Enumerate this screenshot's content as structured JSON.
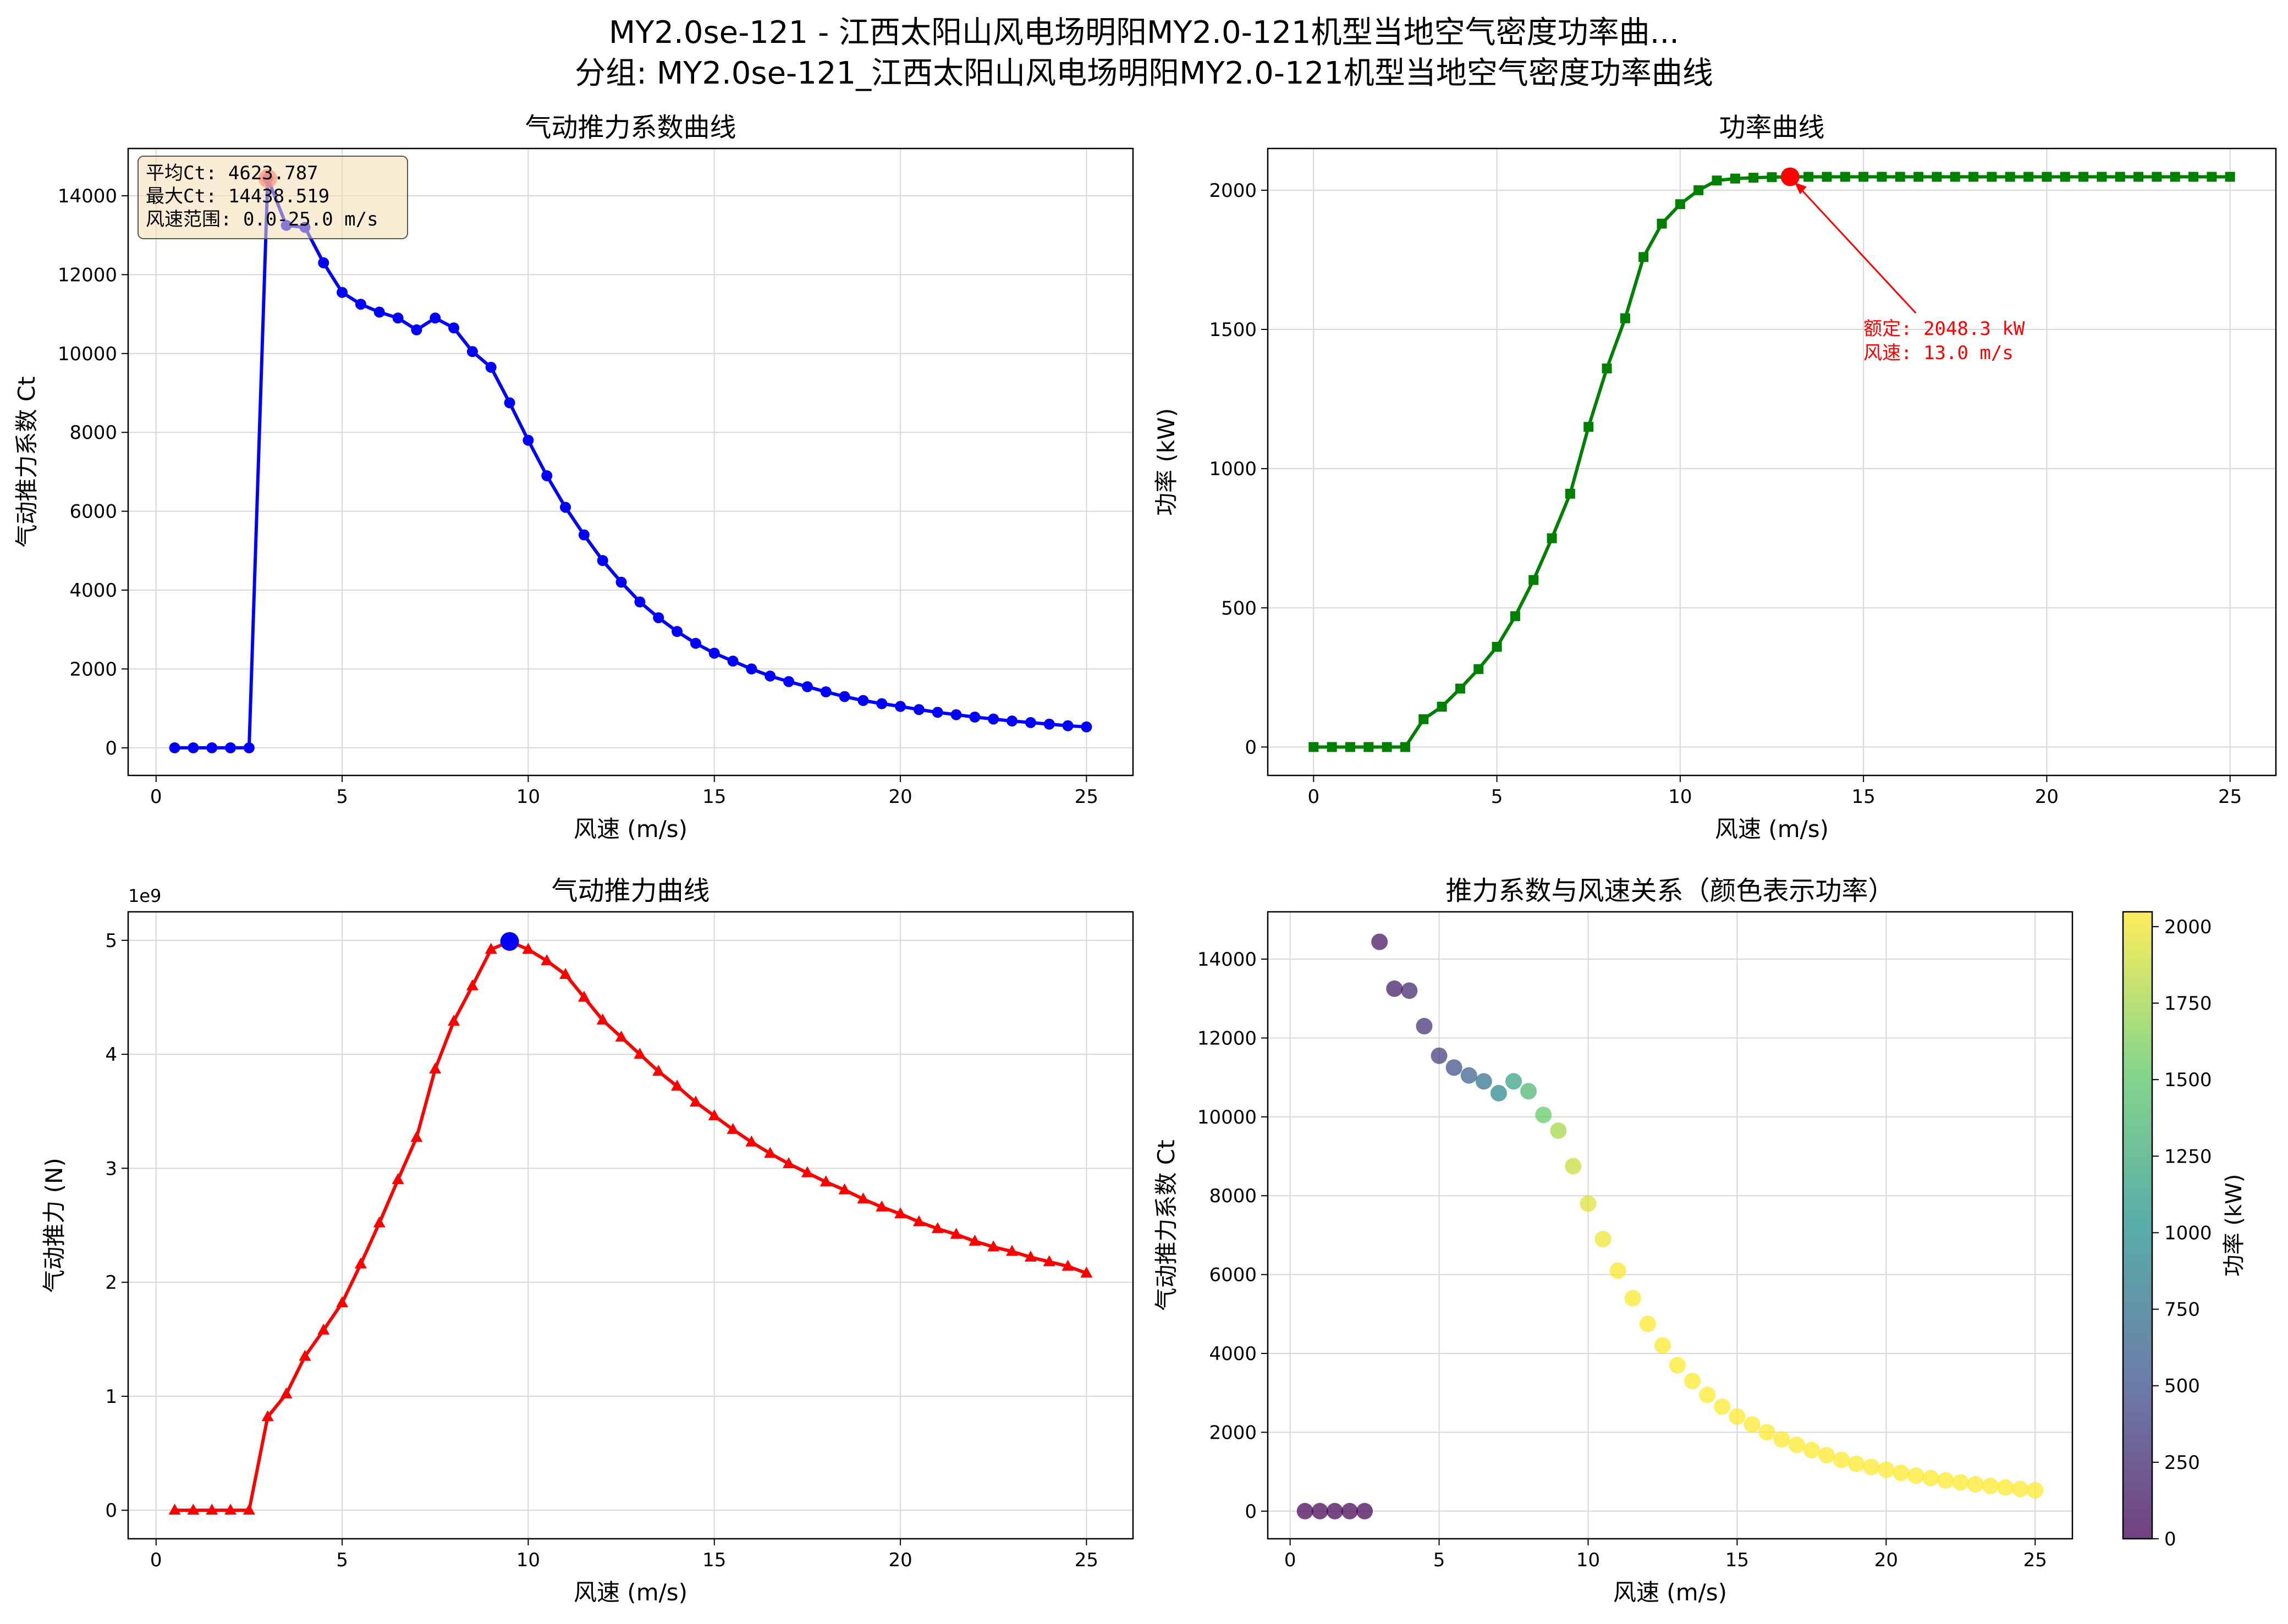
{
  "figure": {
    "title_line1": "MY2.0se-121 - 江西太阳山风电场明阳MY2.0-121机型当地空气密度功率曲...",
    "title_line2": "分组: MY2.0se-121_江西太阳山风电场明阳MY2.0-121机型当地空气密度功率曲线"
  },
  "chart_data": [
    {
      "type": "line",
      "title": "气动推力系数曲线",
      "xlabel": "风速 (m/s)",
      "ylabel": "气动推力系数 Ct",
      "xlim": [
        -0.75,
        26.25
      ],
      "ylim": [
        -700,
        15200
      ],
      "xticks": [
        0,
        5,
        10,
        15,
        20,
        25
      ],
      "yticks": [
        0,
        2000,
        4000,
        6000,
        8000,
        10000,
        12000,
        14000
      ],
      "grid": true,
      "color": "#0000ff",
      "marker": "circle",
      "series": [
        {
          "x": [
            0.5,
            1,
            1.5,
            2,
            2.5,
            3,
            3.5,
            4,
            4.5,
            5,
            5.5,
            6,
            6.5,
            7,
            7.5,
            8,
            8.5,
            9,
            9.5,
            10,
            10.5,
            11,
            11.5,
            12,
            12.5,
            13,
            13.5,
            14,
            14.5,
            15,
            15.5,
            16,
            16.5,
            17,
            17.5,
            18,
            18.5,
            19,
            19.5,
            20,
            20.5,
            21,
            21.5,
            22,
            22.5,
            23,
            23.5,
            24,
            24.5,
            25
          ],
          "values": [
            0,
            0,
            0,
            0,
            0,
            14438.5,
            13250,
            13200,
            12300,
            11550,
            11250,
            11050,
            10900,
            10600,
            10900,
            10650,
            10050,
            9650,
            8750,
            7800,
            6900,
            6100,
            5400,
            4750,
            4200,
            3700,
            3300,
            2950,
            2650,
            2400,
            2200,
            2000,
            1820,
            1680,
            1550,
            1420,
            1300,
            1200,
            1120,
            1050,
            970,
            900,
            840,
            780,
            730,
            680,
            640,
            600,
            560,
            530
          ]
        }
      ],
      "highlight": {
        "x": 3.0,
        "y": 14438.5,
        "color": "#ff4040"
      },
      "stats_box": {
        "line1": "平均Ct: 4623.787",
        "line2": "最大Ct: 14438.519",
        "line3": "风速范围: 0.0-25.0 m/s"
      }
    },
    {
      "type": "line",
      "title": "功率曲线",
      "xlabel": "风速 (m/s)",
      "ylabel": "功率 (kW)",
      "xlim": [
        -1.25,
        26.25
      ],
      "ylim": [
        -102,
        2150
      ],
      "xticks": [
        0,
        5,
        10,
        15,
        20,
        25
      ],
      "yticks": [
        0,
        500,
        1000,
        1500,
        2000
      ],
      "grid": true,
      "color": "#008000",
      "marker": "square",
      "series": [
        {
          "x": [
            0,
            0.5,
            1,
            1.5,
            2,
            2.5,
            3,
            3.5,
            4,
            4.5,
            5,
            5.5,
            6,
            6.5,
            7,
            7.5,
            8,
            8.5,
            9,
            9.5,
            10,
            10.5,
            11,
            11.5,
            12,
            12.5,
            13,
            13.5,
            14,
            14.5,
            15,
            15.5,
            16,
            16.5,
            17,
            17.5,
            18,
            18.5,
            19,
            19.5,
            20,
            20.5,
            21,
            21.5,
            22,
            22.5,
            23,
            23.5,
            24,
            24.5,
            25
          ],
          "values": [
            0,
            0,
            0,
            0,
            0,
            0,
            100,
            145,
            210,
            280,
            360,
            470,
            600,
            750,
            910,
            1150,
            1360,
            1540,
            1760,
            1880,
            1950,
            2000,
            2035,
            2042,
            2045,
            2047,
            2048.3,
            2048.3,
            2048.3,
            2048.3,
            2048.3,
            2048.3,
            2048.3,
            2048.3,
            2048.3,
            2048.3,
            2048.3,
            2048.3,
            2048.3,
            2048.3,
            2048.3,
            2048.3,
            2048.3,
            2048.3,
            2048.3,
            2048.3,
            2048.3,
            2048.3,
            2048.3,
            2048.3,
            2048.3
          ]
        }
      ],
      "highlight": {
        "x": 13.0,
        "y": 2048.3,
        "color": "#ff0000"
      },
      "annotation": {
        "line1": "额定: 2048.3 kW",
        "line2": "风速: 13.0 m/s",
        "text_x": 15.0,
        "text_y": 1480,
        "color": "#ff0000"
      }
    },
    {
      "type": "line",
      "title": "气动推力曲线",
      "xlabel": "风速 (m/s)",
      "ylabel": "气动推力 (N)",
      "offset_label": "1e9",
      "xlim": [
        -0.75,
        26.25
      ],
      "ylim": [
        -0.25,
        5.25
      ],
      "xticks": [
        0,
        5,
        10,
        15,
        20,
        25
      ],
      "yticks": [
        0,
        1,
        2,
        3,
        4,
        5
      ],
      "grid": true,
      "color": "#ff0000",
      "marker": "triangle",
      "series": [
        {
          "x": [
            0.5,
            1,
            1.5,
            2,
            2.5,
            3,
            3.5,
            4,
            4.5,
            5,
            5.5,
            6,
            6.5,
            7,
            7.5,
            8,
            8.5,
            9,
            9.5,
            10,
            10.5,
            11,
            11.5,
            12,
            12.5,
            13,
            13.5,
            14,
            14.5,
            15,
            15.5,
            16,
            16.5,
            17,
            17.5,
            18,
            18.5,
            19,
            19.5,
            20,
            20.5,
            21,
            21.5,
            22,
            22.5,
            23,
            23.5,
            24,
            24.5,
            25
          ],
          "values": [
            0,
            0,
            0,
            0,
            0,
            0.82,
            1.02,
            1.35,
            1.58,
            1.82,
            2.16,
            2.52,
            2.9,
            3.27,
            3.87,
            4.29,
            4.6,
            4.92,
            4.99,
            4.92,
            4.82,
            4.7,
            4.5,
            4.3,
            4.15,
            4.0,
            3.85,
            3.72,
            3.58,
            3.46,
            3.34,
            3.23,
            3.13,
            3.04,
            2.96,
            2.88,
            2.81,
            2.73,
            2.66,
            2.6,
            2.53,
            2.47,
            2.42,
            2.36,
            2.31,
            2.27,
            2.22,
            2.18,
            2.14,
            2.08
          ]
        }
      ],
      "highlight": {
        "x": 9.5,
        "y": 4.99,
        "color": "#0000ff"
      }
    },
    {
      "type": "scatter",
      "title": "推力系数与风速关系（颜色表示功率）",
      "xlabel": "风速 (m/s)",
      "ylabel": "气动推力系数 Ct",
      "xlim": [
        -0.75,
        26.25
      ],
      "ylim": [
        -700,
        15200
      ],
      "xticks": [
        0,
        5,
        10,
        15,
        20,
        25
      ],
      "yticks": [
        0,
        2000,
        4000,
        6000,
        8000,
        10000,
        12000,
        14000
      ],
      "grid": true,
      "colormap": "viridis",
      "colorbar": {
        "label": "功率 (kW)",
        "range": [
          0,
          2048.3
        ],
        "ticks": [
          0,
          250,
          500,
          750,
          1000,
          1250,
          1500,
          1750,
          2000
        ]
      },
      "points": {
        "x": [
          0.5,
          1,
          1.5,
          2,
          2.5,
          3,
          3.5,
          4,
          4.5,
          5,
          5.5,
          6,
          6.5,
          7,
          7.5,
          8,
          8.5,
          9,
          9.5,
          10,
          10.5,
          11,
          11.5,
          12,
          12.5,
          13,
          13.5,
          14,
          14.5,
          15,
          15.5,
          16,
          16.5,
          17,
          17.5,
          18,
          18.5,
          19,
          19.5,
          20,
          20.5,
          21,
          21.5,
          22,
          22.5,
          23,
          23.5,
          24,
          24.5,
          25
        ],
        "y": [
          0,
          0,
          0,
          0,
          0,
          14438.5,
          13250,
          13200,
          12300,
          11550,
          11250,
          11050,
          10900,
          10600,
          10900,
          10650,
          10050,
          9650,
          8750,
          7800,
          6900,
          6100,
          5400,
          4750,
          4200,
          3700,
          3300,
          2950,
          2650,
          2400,
          2200,
          2000,
          1820,
          1680,
          1550,
          1420,
          1300,
          1200,
          1120,
          1050,
          970,
          900,
          840,
          780,
          730,
          680,
          640,
          600,
          560,
          530
        ],
        "power": [
          0,
          0,
          0,
          0,
          0,
          100,
          145,
          210,
          280,
          360,
          470,
          600,
          750,
          910,
          1150,
          1360,
          1540,
          1760,
          1880,
          1950,
          2000,
          2035,
          2042,
          2045,
          2047,
          2048.3,
          2048.3,
          2048.3,
          2048.3,
          2048.3,
          2048.3,
          2048.3,
          2048.3,
          2048.3,
          2048.3,
          2048.3,
          2048.3,
          2048.3,
          2048.3,
          2048.3,
          2048.3,
          2048.3,
          2048.3,
          2048.3,
          2048.3,
          2048.3,
          2048.3,
          2048.3,
          2048.3,
          2048.3
        ]
      }
    }
  ]
}
